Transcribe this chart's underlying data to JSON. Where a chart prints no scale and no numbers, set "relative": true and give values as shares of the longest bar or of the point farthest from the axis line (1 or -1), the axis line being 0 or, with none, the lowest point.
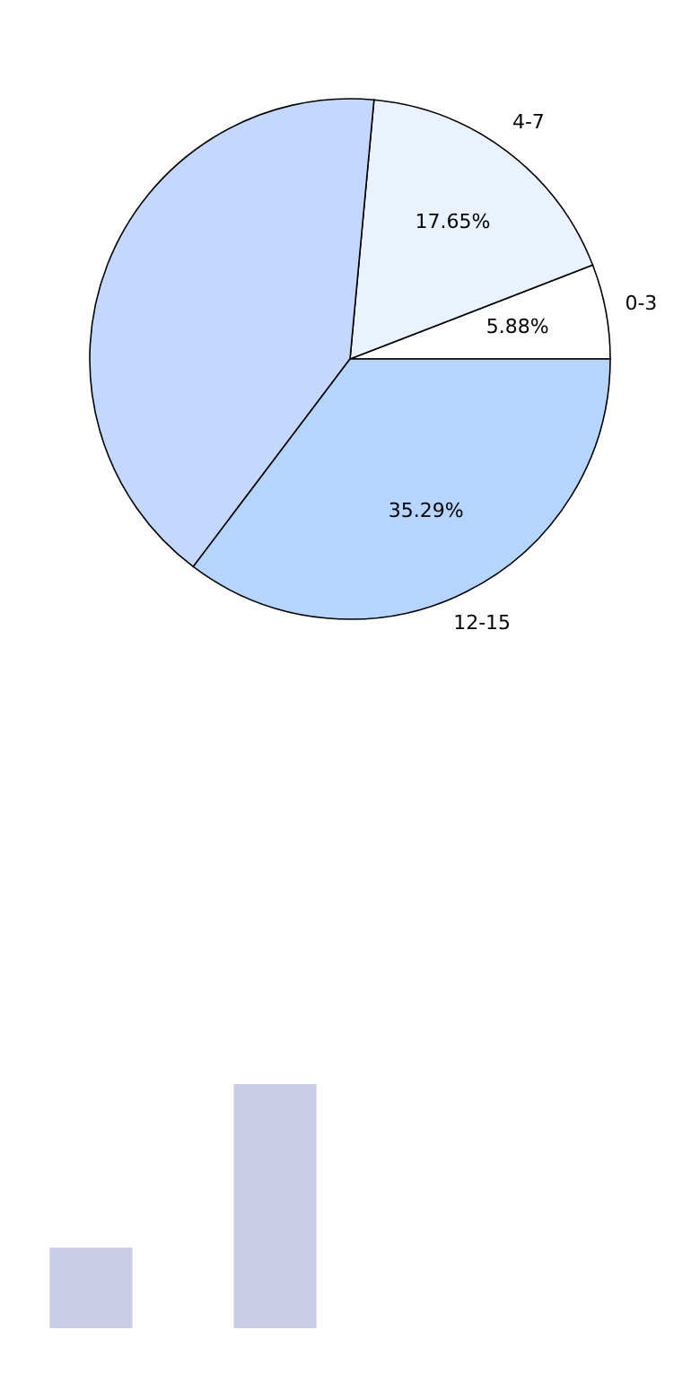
{
  "chart_data": [
    {
      "type": "pie",
      "categories": [
        "0-3",
        "4-7",
        null,
        "12-15"
      ],
      "values": [
        5.88,
        17.65,
        41.18,
        35.29
      ],
      "colors": [
        "#ffffff",
        "#eaf2ff",
        "#c4d8ff",
        "#b5d5ff"
      ],
      "value_labels": [
        "5.88%",
        "17.65%",
        null,
        "35.29%"
      ]
    },
    {
      "type": "bar",
      "relative": true,
      "categories": [
        null,
        null
      ],
      "values": [
        0.33,
        1
      ],
      "color": "#cacbe6"
    }
  ]
}
